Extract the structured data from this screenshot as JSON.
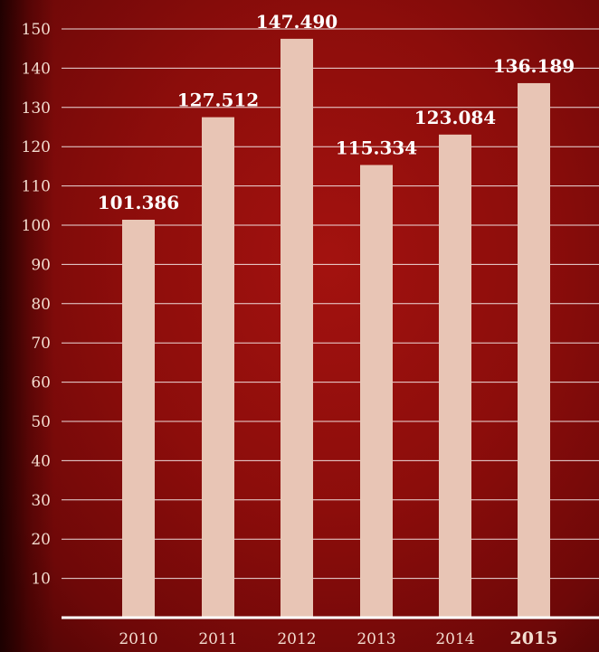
{
  "chart_data": {
    "type": "bar",
    "categories": [
      "2010",
      "2011",
      "2012",
      "2013",
      "2014",
      "2015"
    ],
    "values": [
      101.386,
      127.512,
      147.49,
      115.334,
      123.084,
      136.189
    ],
    "data_labels": [
      "101.386",
      "127.512",
      "147.490",
      "115.334",
      "123.084",
      "136.189"
    ],
    "yticks": [
      10,
      20,
      30,
      40,
      50,
      60,
      70,
      80,
      90,
      100,
      110,
      120,
      130,
      140,
      150
    ],
    "ylim": [
      0,
      150
    ],
    "grid": true,
    "title": "",
    "xlabel": "",
    "ylabel": "",
    "bar_color": "#e8c5b5",
    "background_color": "#8c0d0b",
    "grid_color": "#ffffff"
  }
}
